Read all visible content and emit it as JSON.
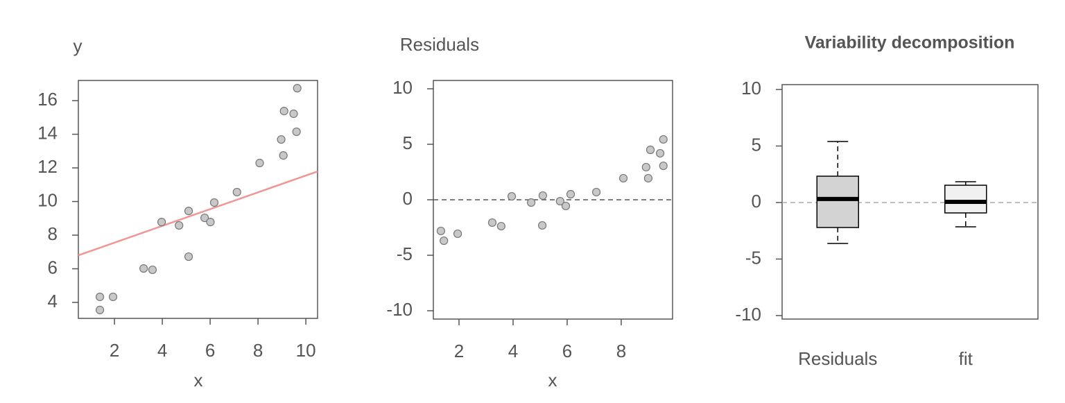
{
  "chart_data": [
    {
      "type": "scatter",
      "ylabel": "y",
      "xlabel": "x",
      "x": [
        1.39,
        1.39,
        1.94,
        3.22,
        3.59,
        3.97,
        4.7,
        5.1,
        5.1,
        5.77,
        6.01,
        6.17,
        7.12,
        8.07,
        8.97,
        9.06,
        9.09,
        9.49,
        9.61,
        9.64
      ],
      "values": [
        4.33,
        3.55,
        4.33,
        6.02,
        5.94,
        8.78,
        8.58,
        9.44,
        6.72,
        9.03,
        8.78,
        9.94,
        10.56,
        12.29,
        13.69,
        12.74,
        15.38,
        15.22,
        14.15,
        16.74
      ],
      "color": "#c8c8c8",
      "fit_line": {
        "x": [
          0.49,
          10.49
        ],
        "y": [
          6.8,
          11.79
        ],
        "color": "#f09595"
      },
      "xlim": [
        0.49,
        10.49
      ],
      "ylim": [
        3.05,
        17.2
      ],
      "xticks": [
        2,
        4,
        6,
        8,
        10
      ],
      "yticks": [
        4,
        6,
        8,
        10,
        12,
        14,
        16
      ]
    },
    {
      "type": "scatter",
      "ylabel": "Residuals",
      "xlabel": "x",
      "x": [
        1.33,
        1.44,
        1.95,
        3.23,
        3.56,
        3.95,
        4.67,
        5.08,
        5.1,
        5.74,
        5.95,
        6.13,
        7.08,
        8.08,
        8.92,
        9.0,
        9.08,
        9.44,
        9.56,
        9.56
      ],
      "values": [
        -2.81,
        -3.69,
        -3.06,
        -2.06,
        -2.38,
        0.31,
        -0.25,
        -2.31,
        0.38,
        -0.13,
        -0.56,
        0.5,
        0.69,
        1.94,
        2.94,
        1.94,
        4.5,
        4.19,
        3.06,
        5.44
      ],
      "color": "#c8c8c8",
      "hline": 0,
      "xlim": [
        1.05,
        9.9
      ],
      "ylim": [
        -10.75,
        10.75
      ],
      "xticks": [
        2,
        4,
        6,
        8
      ],
      "yticks": [
        -10,
        -5,
        0,
        5,
        10
      ]
    },
    {
      "type": "box",
      "title": "Variability decomposition",
      "categories": [
        "Residuals",
        "fit"
      ],
      "boxes": [
        {
          "whislo": -3.62,
          "q1": -2.21,
          "med": 0.31,
          "q3": 2.33,
          "whishi": 5.4
        },
        {
          "whislo": -2.15,
          "q1": -0.92,
          "med": 0.06,
          "q3": 1.53,
          "whishi": 1.84
        }
      ],
      "colors": [
        "#d3d3d3",
        "#f0f0f0"
      ],
      "hline": 0,
      "ylim": [
        -10.31,
        10.43
      ],
      "yticks": [
        -10,
        -5,
        0,
        5,
        10
      ]
    }
  ]
}
